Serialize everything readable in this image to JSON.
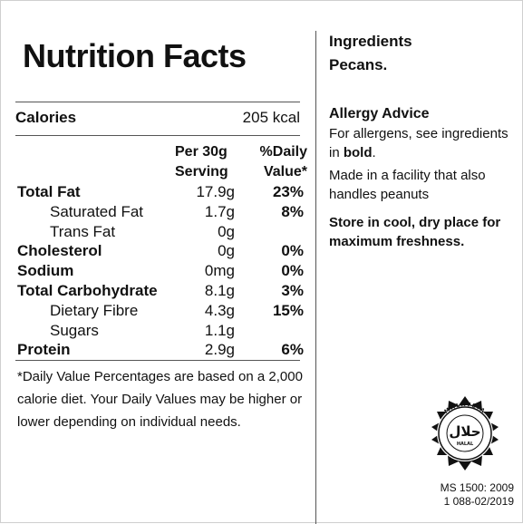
{
  "nutrition": {
    "title": "Nutrition Facts",
    "calories_label": "Calories",
    "calories_value": "205 kcal",
    "header_serving_line1": "Per 30g",
    "header_serving_line2": "Serving",
    "header_dv_line1": "%Daily",
    "header_dv_line2": "Value*",
    "rows": [
      {
        "name": "Total Fat",
        "amount": "17.9g",
        "percent": "23%",
        "bold": true,
        "sub": false
      },
      {
        "name": "Saturated Fat",
        "amount": "1.7g",
        "percent": "8%",
        "bold": false,
        "sub": true
      },
      {
        "name": "Trans Fat",
        "amount": "0g",
        "percent": "",
        "bold": false,
        "sub": true
      },
      {
        "name": "Cholesterol",
        "amount": "0g",
        "percent": "0%",
        "bold": true,
        "sub": false
      },
      {
        "name": "Sodium",
        "amount": "0mg",
        "percent": "0%",
        "bold": true,
        "sub": false
      },
      {
        "name": "Total Carbohydrate",
        "amount": "8.1g",
        "percent": "3%",
        "bold": true,
        "sub": false
      },
      {
        "name": "Dietary Fibre",
        "amount": "4.3g",
        "percent": "15%",
        "bold": false,
        "sub": true
      },
      {
        "name": "Sugars",
        "amount": "1.1g",
        "percent": "",
        "bold": false,
        "sub": true
      },
      {
        "name": "Protein",
        "amount": "2.9g",
        "percent": "6%",
        "bold": true,
        "sub": false
      }
    ],
    "footnote": "*Daily Value Percentages are based on a 2,000 calorie diet. Your Daily Values may be higher or lower depending on individual needs."
  },
  "ingredients": {
    "heading": "Ingredients",
    "text": "Pecans."
  },
  "allergy": {
    "heading": "Allergy Advice",
    "text_before": "For allergens, see ingredients in ",
    "text_bold": "bold",
    "text_after": ".",
    "facility": "Made in a facility that also handles peanuts",
    "storage": "Store in cool, dry place for maximum freshness."
  },
  "halal": {
    "logo_text": "حلال",
    "logo_small_text": "HALAL",
    "logo_ring_text": "MALAYSIA",
    "standard": "MS 1500: 2009",
    "cert_number": "1 088-02/2019"
  }
}
